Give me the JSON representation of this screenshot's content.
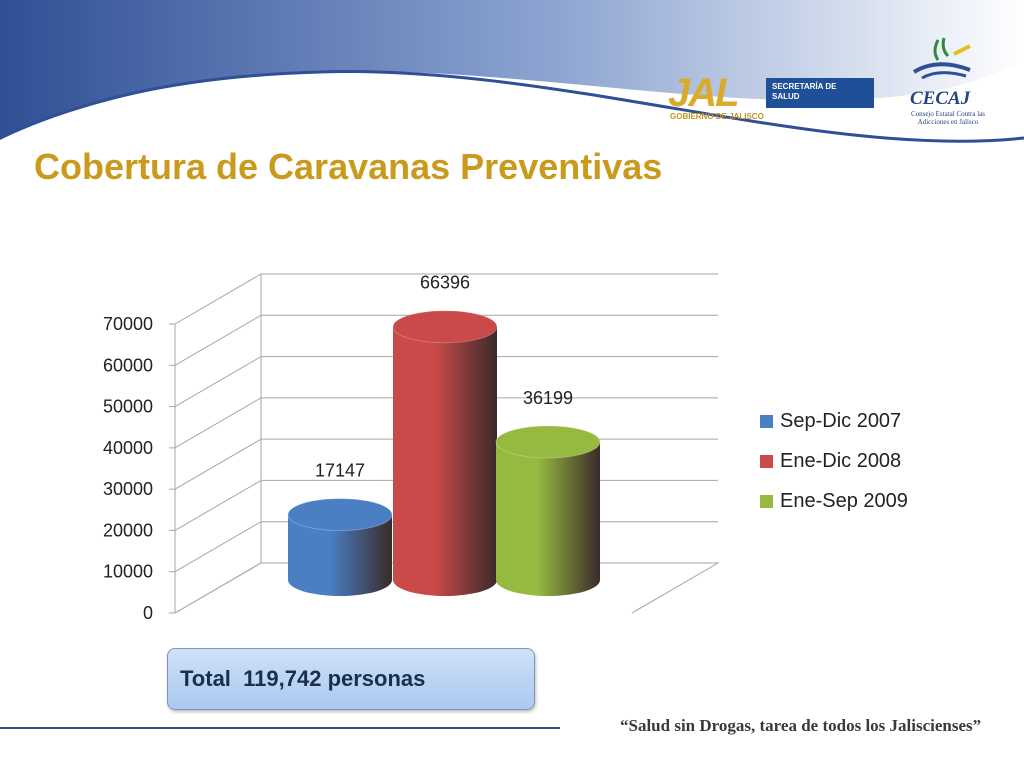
{
  "slide": {
    "title": "Cobertura de Caravanas Preventivas",
    "total_text": "Total  119,742 personas",
    "footer_quote": "“Salud sin Drogas, tarea de todos los Jaliscienses”"
  },
  "logos": {
    "jal_mark": "JAL",
    "jal_box_line1": "SECRETARÍA DE",
    "jal_box_line2": "SALUD",
    "jal_sub": "GOBIERNO DE JALISCO",
    "cecaj_title": "CECAJ",
    "cecaj_sub": "Consejo Estatal Contra las Adicciones en Jalisco"
  },
  "colors": {
    "title": "#c99a1c",
    "blue_series": "#4a7fc4",
    "red_series": "#c94a48",
    "green_series": "#96ba3f",
    "header_blue": "#2f4f96"
  },
  "chart_data": {
    "type": "bar",
    "style": "3d-cylinder",
    "categories": [
      "Sep-Dic 2007",
      "Ene-Dic 2008",
      "Ene-Sep 2009"
    ],
    "values": [
      17147,
      66396,
      36199
    ],
    "data_labels": [
      "17147",
      "66396",
      "36199"
    ],
    "colors": [
      "#4a7fc4",
      "#c94a48",
      "#96ba3f"
    ],
    "ylim": [
      0,
      70000
    ],
    "yticks": [
      0,
      10000,
      20000,
      30000,
      40000,
      50000,
      60000,
      70000
    ],
    "ytick_labels": [
      "0",
      "10000",
      "20000",
      "30000",
      "40000",
      "50000",
      "60000",
      "70000"
    ],
    "grid": true,
    "legend": {
      "position": "right",
      "entries": [
        "Sep-Dic 2007",
        "Ene-Dic 2008",
        "Ene-Sep 2009"
      ]
    }
  }
}
